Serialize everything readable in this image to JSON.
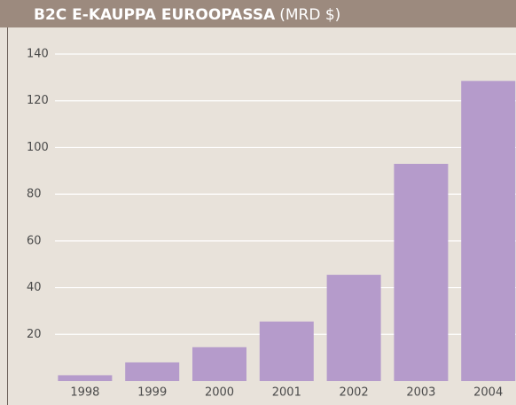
{
  "chart_data": {
    "type": "bar",
    "title": "B2C E-KAUPPA EUROOPASSA",
    "unit": "(MRD $)",
    "categories": [
      "1998",
      "1999",
      "2000",
      "2001",
      "2002",
      "2003",
      "2004"
    ],
    "values": [
      2.5,
      8,
      14.5,
      25.5,
      45.5,
      93,
      128.5
    ],
    "color": "#b59bcb",
    "ylim": [
      0,
      140
    ],
    "yticks": [
      20,
      40,
      60,
      80,
      100,
      120,
      140
    ],
    "grid": true
  }
}
